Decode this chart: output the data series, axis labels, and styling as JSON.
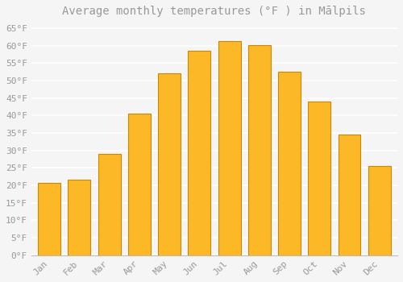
{
  "title": "Average monthly temperatures (°F ) in Mālpils",
  "months": [
    "Jan",
    "Feb",
    "Mar",
    "Apr",
    "May",
    "Jun",
    "Jul",
    "Aug",
    "Sep",
    "Oct",
    "Nov",
    "Dec"
  ],
  "values": [
    20.7,
    21.7,
    28.9,
    40.5,
    52.0,
    58.6,
    61.2,
    60.1,
    52.5,
    44.1,
    34.5,
    25.5
  ],
  "bar_color": "#FDB827",
  "bar_edge_color": "#CC8800",
  "background_color": "#F5F5F5",
  "plot_bg_color": "#F5F5F5",
  "grid_color": "#FFFFFF",
  "text_color": "#999999",
  "ylim": [
    0,
    67
  ],
  "yticks": [
    0,
    5,
    10,
    15,
    20,
    25,
    30,
    35,
    40,
    45,
    50,
    55,
    60,
    65
  ],
  "ytick_labels": [
    "0°F",
    "5°F",
    "10°F",
    "15°F",
    "20°F",
    "25°F",
    "30°F",
    "35°F",
    "40°F",
    "45°F",
    "50°F",
    "55°F",
    "60°F",
    "65°F"
  ],
  "title_fontsize": 10,
  "tick_fontsize": 8,
  "bar_width": 0.75
}
